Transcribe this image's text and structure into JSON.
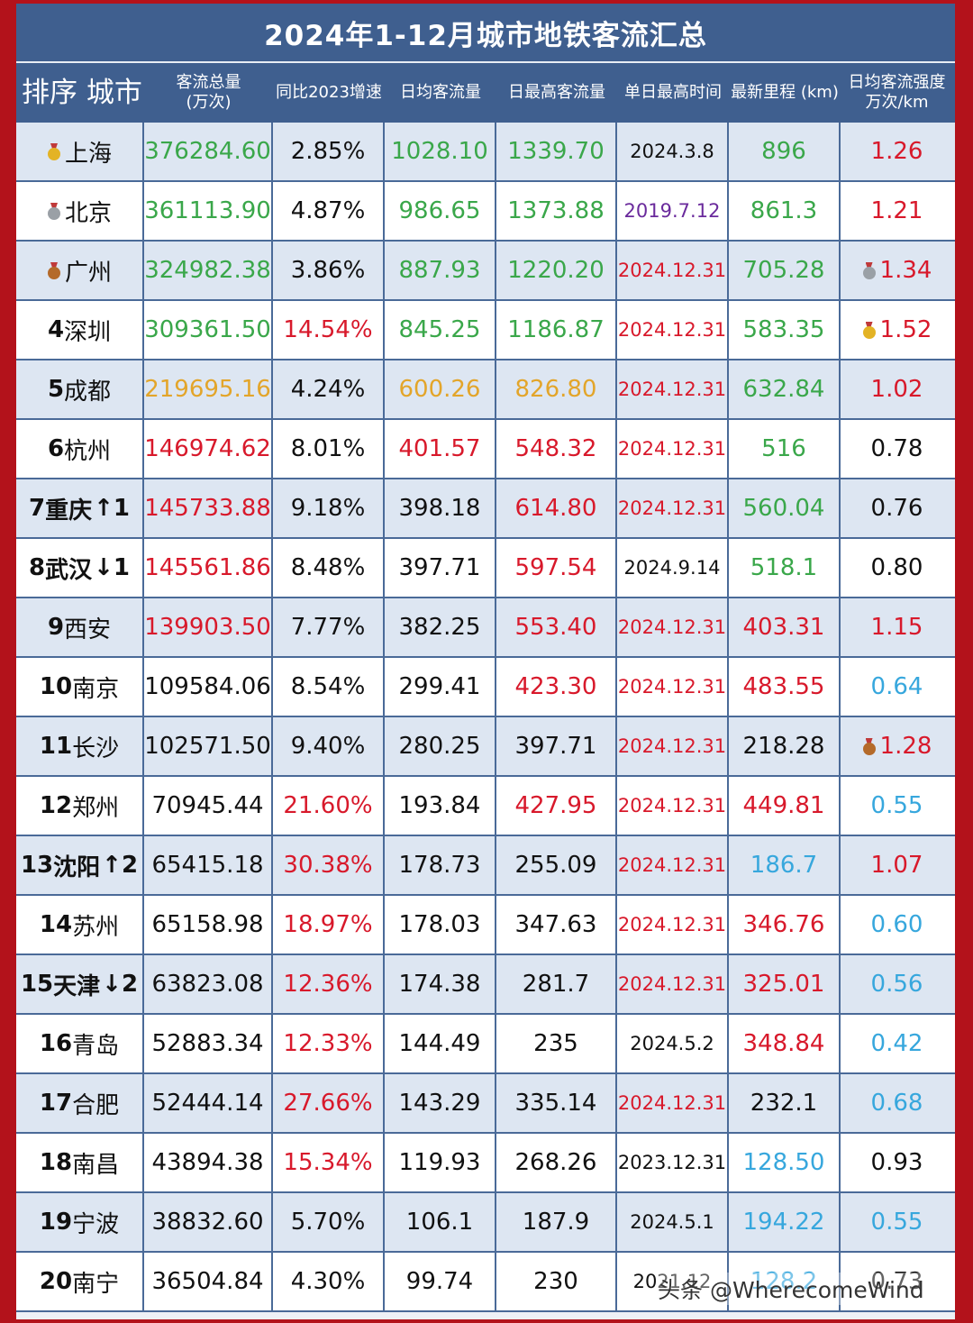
{
  "title": "2024年1-12月城市地铁客流汇总",
  "headers": {
    "rank_city": "排序 城市",
    "total_line1": "客流总量",
    "total_line2": "(万次)",
    "growth": "同比2023增速",
    "daily_avg": "日均客流量",
    "daily_max": "日最高客流量",
    "max_date": "单日最高时间",
    "mileage": "最新里程 (km)",
    "intensity_line1": "日均客流强度",
    "intensity_line2": "万次/km"
  },
  "colors": {
    "green": "#3aa74a",
    "red": "#d8192b",
    "orange": "#e3a52a",
    "blue": "#37a7dd",
    "purple": "#6a2a9c"
  },
  "rows": [
    {
      "rank": "",
      "medal": "gold",
      "city": "上海",
      "change": "",
      "total": "376284.60",
      "total_c": "green",
      "growth": "2.85%",
      "growth_c": "black",
      "avg": "1028.10",
      "avg_c": "green",
      "max": "1339.70",
      "max_c": "green",
      "date": "2024.3.8",
      "date_c": "black",
      "km": "896",
      "km_c": "green",
      "intensity": "1.26",
      "int_c": "red",
      "int_medal": ""
    },
    {
      "rank": "",
      "medal": "silver",
      "city": "北京",
      "change": "",
      "total": "361113.90",
      "total_c": "green",
      "growth": "4.87%",
      "growth_c": "black",
      "avg": "986.65",
      "avg_c": "green",
      "max": "1373.88",
      "max_c": "green",
      "date": "2019.7.12",
      "date_c": "purple",
      "km": "861.3",
      "km_c": "green",
      "intensity": "1.21",
      "int_c": "red",
      "int_medal": ""
    },
    {
      "rank": "",
      "medal": "bronze",
      "city": "广州",
      "change": "",
      "total": "324982.38",
      "total_c": "green",
      "growth": "3.86%",
      "growth_c": "black",
      "avg": "887.93",
      "avg_c": "green",
      "max": "1220.20",
      "max_c": "green",
      "date": "2024.12.31",
      "date_c": "red",
      "km": "705.28",
      "km_c": "green",
      "intensity": "1.34",
      "int_c": "red",
      "int_medal": "silver"
    },
    {
      "rank": "4",
      "medal": "",
      "city": "深圳",
      "change": "",
      "total": "309361.50",
      "total_c": "green",
      "growth": "14.54%",
      "growth_c": "red",
      "avg": "845.25",
      "avg_c": "green",
      "max": "1186.87",
      "max_c": "green",
      "date": "2024.12.31",
      "date_c": "red",
      "km": "583.35",
      "km_c": "green",
      "intensity": "1.52",
      "int_c": "red",
      "int_medal": "gold"
    },
    {
      "rank": "5",
      "medal": "",
      "city": "成都",
      "change": "",
      "total": "219695.16",
      "total_c": "orange",
      "growth": "4.24%",
      "growth_c": "black",
      "avg": "600.26",
      "avg_c": "orange",
      "max": "826.80",
      "max_c": "orange",
      "date": "2024.12.31",
      "date_c": "red",
      "km": "632.84",
      "km_c": "green",
      "intensity": "1.02",
      "int_c": "red",
      "int_medal": ""
    },
    {
      "rank": "6",
      "medal": "",
      "city": "杭州",
      "change": "",
      "total": "146974.62",
      "total_c": "red",
      "growth": "8.01%",
      "growth_c": "black",
      "avg": "401.57",
      "avg_c": "red",
      "max": "548.32",
      "max_c": "red",
      "date": "2024.12.31",
      "date_c": "red",
      "km": "516",
      "km_c": "green",
      "intensity": "0.78",
      "int_c": "black",
      "int_medal": ""
    },
    {
      "rank": "7",
      "medal": "",
      "city": "重庆",
      "change": "↑1",
      "total": "145733.88",
      "total_c": "red",
      "growth": "9.18%",
      "growth_c": "black",
      "avg": "398.18",
      "avg_c": "black",
      "max": "614.80",
      "max_c": "red",
      "date": "2024.12.31",
      "date_c": "red",
      "km": "560.04",
      "km_c": "green",
      "intensity": "0.76",
      "int_c": "black",
      "int_medal": ""
    },
    {
      "rank": "8",
      "medal": "",
      "city": "武汉",
      "change": "↓1",
      "total": "145561.86",
      "total_c": "red",
      "growth": "8.48%",
      "growth_c": "black",
      "avg": "397.71",
      "avg_c": "black",
      "max": "597.54",
      "max_c": "red",
      "date": "2024.9.14",
      "date_c": "black",
      "km": "518.1",
      "km_c": "green",
      "intensity": "0.80",
      "int_c": "black",
      "int_medal": ""
    },
    {
      "rank": "9",
      "medal": "",
      "city": "西安",
      "change": "",
      "total": "139903.50",
      "total_c": "red",
      "growth": "7.77%",
      "growth_c": "black",
      "avg": "382.25",
      "avg_c": "black",
      "max": "553.40",
      "max_c": "red",
      "date": "2024.12.31",
      "date_c": "red",
      "km": "403.31",
      "km_c": "red",
      "intensity": "1.15",
      "int_c": "red",
      "int_medal": ""
    },
    {
      "rank": "10",
      "medal": "",
      "city": "南京",
      "change": "",
      "total": "109584.06",
      "total_c": "black",
      "growth": "8.54%",
      "growth_c": "black",
      "avg": "299.41",
      "avg_c": "black",
      "max": "423.30",
      "max_c": "red",
      "date": "2024.12.31",
      "date_c": "red",
      "km": "483.55",
      "km_c": "red",
      "intensity": "0.64",
      "int_c": "blue",
      "int_medal": ""
    },
    {
      "rank": "11",
      "medal": "",
      "city": "长沙",
      "change": "",
      "total": "102571.50",
      "total_c": "black",
      "growth": "9.40%",
      "growth_c": "black",
      "avg": "280.25",
      "avg_c": "black",
      "max": "397.71",
      "max_c": "black",
      "date": "2024.12.31",
      "date_c": "red",
      "km": "218.28",
      "km_c": "black",
      "intensity": "1.28",
      "int_c": "red",
      "int_medal": "bronze"
    },
    {
      "rank": "12",
      "medal": "",
      "city": "郑州",
      "change": "",
      "total": "70945.44",
      "total_c": "black",
      "growth": "21.60%",
      "growth_c": "red",
      "avg": "193.84",
      "avg_c": "black",
      "max": "427.95",
      "max_c": "red",
      "date": "2024.12.31",
      "date_c": "red",
      "km": "449.81",
      "km_c": "red",
      "intensity": "0.55",
      "int_c": "blue",
      "int_medal": ""
    },
    {
      "rank": "13",
      "medal": "",
      "city": "沈阳",
      "change": "↑2",
      "total": "65415.18",
      "total_c": "black",
      "growth": "30.38%",
      "growth_c": "red",
      "avg": "178.73",
      "avg_c": "black",
      "max": "255.09",
      "max_c": "black",
      "date": "2024.12.31",
      "date_c": "red",
      "km": "186.7",
      "km_c": "blue",
      "intensity": "1.07",
      "int_c": "red",
      "int_medal": ""
    },
    {
      "rank": "14",
      "medal": "",
      "city": "苏州",
      "change": "",
      "total": "65158.98",
      "total_c": "black",
      "growth": "18.97%",
      "growth_c": "red",
      "avg": "178.03",
      "avg_c": "black",
      "max": "347.63",
      "max_c": "black",
      "date": "2024.12.31",
      "date_c": "red",
      "km": "346.76",
      "km_c": "red",
      "intensity": "0.60",
      "int_c": "blue",
      "int_medal": ""
    },
    {
      "rank": "15",
      "medal": "",
      "city": "天津",
      "change": "↓2",
      "total": "63823.08",
      "total_c": "black",
      "growth": "12.36%",
      "growth_c": "red",
      "avg": "174.38",
      "avg_c": "black",
      "max": "281.7",
      "max_c": "black",
      "date": "2024.12.31",
      "date_c": "red",
      "km": "325.01",
      "km_c": "red",
      "intensity": "0.56",
      "int_c": "blue",
      "int_medal": ""
    },
    {
      "rank": "16",
      "medal": "",
      "city": "青岛",
      "change": "",
      "total": "52883.34",
      "total_c": "black",
      "growth": "12.33%",
      "growth_c": "red",
      "avg": "144.49",
      "avg_c": "black",
      "max": "235",
      "max_c": "black",
      "date": "2024.5.2",
      "date_c": "black",
      "km": "348.84",
      "km_c": "red",
      "intensity": "0.42",
      "int_c": "blue",
      "int_medal": ""
    },
    {
      "rank": "17",
      "medal": "",
      "city": "合肥",
      "change": "",
      "total": "52444.14",
      "total_c": "black",
      "growth": "27.66%",
      "growth_c": "red",
      "avg": "143.29",
      "avg_c": "black",
      "max": "335.14",
      "max_c": "black",
      "date": "2024.12.31",
      "date_c": "red",
      "km": "232.1",
      "km_c": "black",
      "intensity": "0.68",
      "int_c": "blue",
      "int_medal": ""
    },
    {
      "rank": "18",
      "medal": "",
      "city": "南昌",
      "change": "",
      "total": "43894.38",
      "total_c": "black",
      "growth": "15.34%",
      "growth_c": "red",
      "avg": "119.93",
      "avg_c": "black",
      "max": "268.26",
      "max_c": "black",
      "date": "2023.12.31",
      "date_c": "black",
      "km": "128.50",
      "km_c": "blue",
      "intensity": "0.93",
      "int_c": "black",
      "int_medal": ""
    },
    {
      "rank": "19",
      "medal": "",
      "city": "宁波",
      "change": "",
      "total": "38832.60",
      "total_c": "black",
      "growth": "5.70%",
      "growth_c": "black",
      "avg": "106.1",
      "avg_c": "black",
      "max": "187.9",
      "max_c": "black",
      "date": "2024.5.1",
      "date_c": "black",
      "km": "194.22",
      "km_c": "blue",
      "intensity": "0.55",
      "int_c": "blue",
      "int_medal": ""
    },
    {
      "rank": "20",
      "medal": "",
      "city": "南宁",
      "change": "",
      "total": "36504.84",
      "total_c": "black",
      "growth": "4.30%",
      "growth_c": "black",
      "avg": "99.74",
      "avg_c": "black",
      "max": "230",
      "max_c": "black",
      "date": "2021.12",
      "date_c": "black",
      "km": "128.2",
      "km_c": "blue",
      "intensity": "0.73",
      "int_c": "black",
      "int_medal": ""
    }
  ],
  "watermark": "头条 @WherecomeWind"
}
